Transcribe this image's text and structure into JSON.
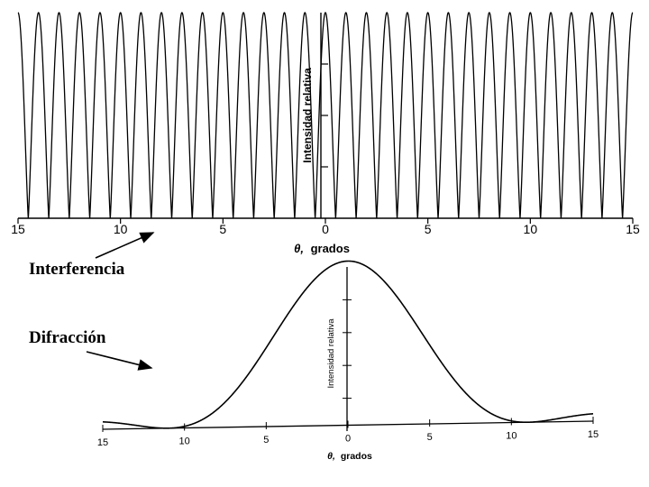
{
  "labels": {
    "interference": "Interferencia",
    "diffraction": "Difracción"
  },
  "chart_data": [
    {
      "type": "line",
      "name": "interference-chart",
      "xlabel_symbol": "θ,",
      "xlabel": "grados",
      "ylabel": "Intensidad relativa",
      "xlim": [
        -15,
        15
      ],
      "ylim": [
        0,
        1
      ],
      "x_ticks": [
        -15,
        -10,
        -5,
        0,
        5,
        10,
        15
      ],
      "x_tick_labels": [
        "15",
        "10",
        "5",
        "0",
        "5",
        "10",
        "15"
      ],
      "series": [
        {
          "function": "cos2",
          "fringe_period_deg": 1.0,
          "peak_at_deg": 0
        }
      ],
      "grid": false,
      "color": "#000000"
    },
    {
      "type": "line",
      "name": "diffraction-chart",
      "xlabel_symbol": "θ,",
      "xlabel": "grados",
      "ylabel": "Intensidad relativa",
      "xlim": [
        -15,
        15
      ],
      "ylim": [
        0,
        1
      ],
      "x_ticks": [
        -15,
        -10,
        -5,
        0,
        5,
        10,
        15
      ],
      "x_tick_labels": [
        "15",
        "10",
        "5",
        "0",
        "5",
        "10",
        "15"
      ],
      "series": [
        {
          "function": "sinc2",
          "first_minimum_deg": 11,
          "peak_at_deg": 0
        }
      ],
      "grid": false,
      "color": "#000000"
    }
  ]
}
